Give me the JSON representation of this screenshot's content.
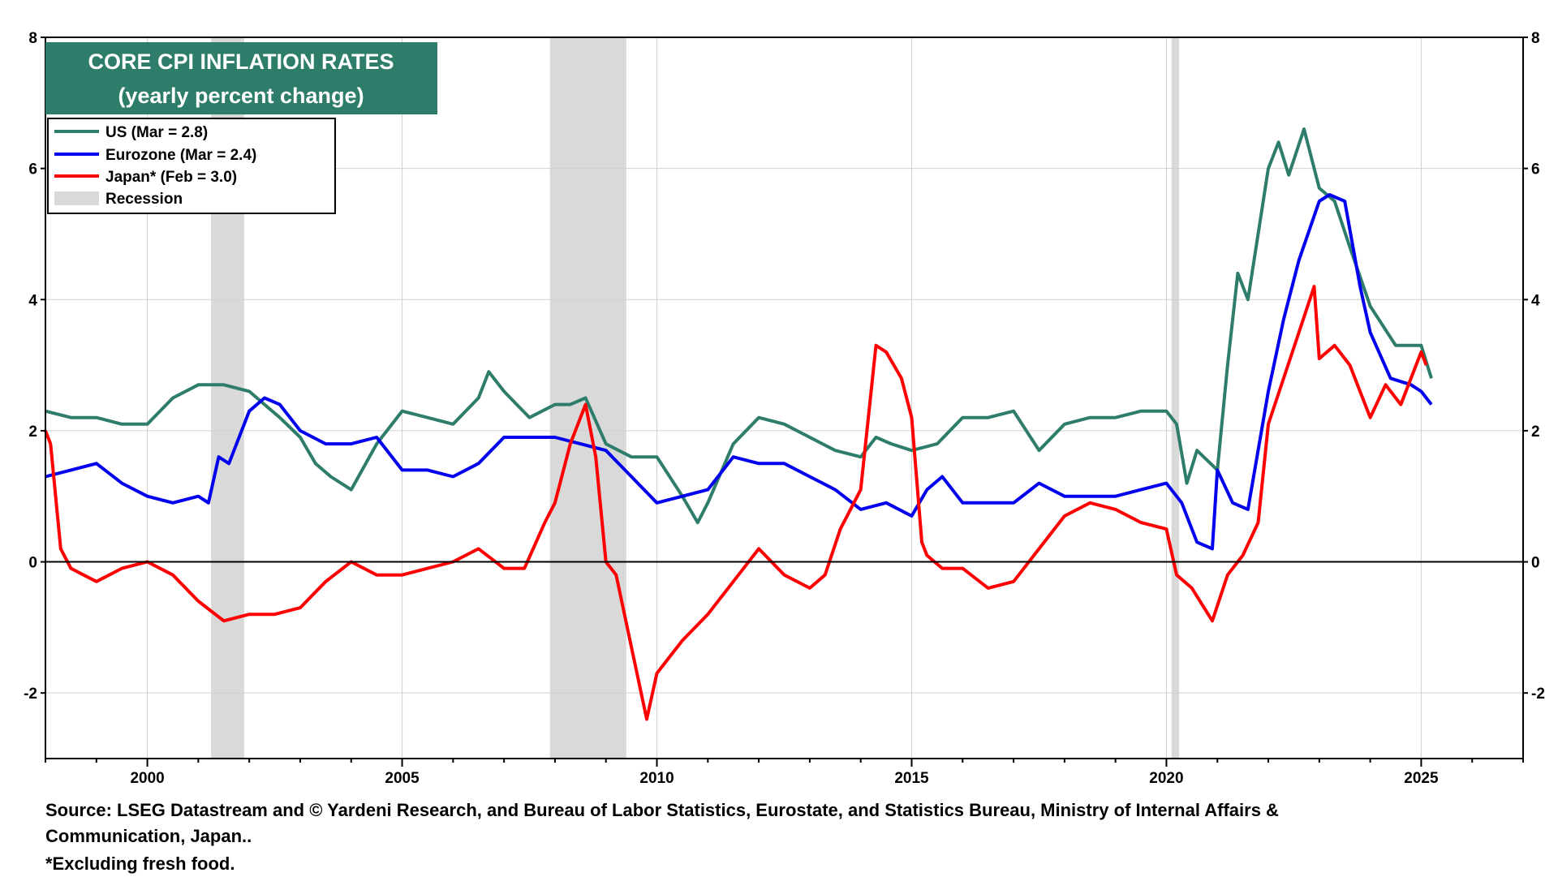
{
  "chart_data": {
    "type": "line",
    "title": "CORE CPI INFLATION RATES",
    "subtitle": "(yearly percent change)",
    "xlabel": "",
    "ylabel": "",
    "xlim": [
      1998.0,
      2027.0
    ],
    "ylim": [
      -3,
      8
    ],
    "x_ticks": [
      2000,
      2005,
      2010,
      2015,
      2020,
      2025
    ],
    "y_ticks": [
      -2,
      0,
      2,
      4,
      6,
      8
    ],
    "legend_position": "top-left",
    "recessions": [
      [
        2001.25,
        2001.9
      ],
      [
        2007.9,
        2009.4
      ],
      [
        2020.1,
        2020.25
      ]
    ],
    "series": [
      {
        "name": "US (Mar = 2.8)",
        "color": "#2e7d6b",
        "x": [
          1998.0,
          1998.5,
          1999.0,
          1999.5,
          2000.0,
          2000.5,
          2001.0,
          2001.5,
          2002.0,
          2002.3,
          2002.6,
          2003.0,
          2003.3,
          2003.6,
          2004.0,
          2004.5,
          2005.0,
          2005.5,
          2006.0,
          2006.5,
          2006.7,
          2007.0,
          2007.5,
          2008.0,
          2008.3,
          2008.6,
          2009.0,
          2009.5,
          2010.0,
          2010.5,
          2010.8,
          2011.0,
          2011.5,
          2012.0,
          2012.5,
          2013.0,
          2013.5,
          2014.0,
          2014.3,
          2014.6,
          2015.0,
          2015.5,
          2016.0,
          2016.5,
          2017.0,
          2017.5,
          2018.0,
          2018.5,
          2019.0,
          2019.5,
          2020.0,
          2020.2,
          2020.4,
          2020.6,
          2021.0,
          2021.2,
          2021.4,
          2021.6,
          2022.0,
          2022.2,
          2022.4,
          2022.7,
          2023.0,
          2023.3,
          2023.6,
          2024.0,
          2024.5,
          2025.0,
          2025.2
        ],
        "values": [
          2.3,
          2.2,
          2.2,
          2.1,
          2.1,
          2.5,
          2.7,
          2.7,
          2.6,
          2.4,
          2.2,
          1.9,
          1.5,
          1.3,
          1.1,
          1.8,
          2.3,
          2.2,
          2.1,
          2.5,
          2.9,
          2.6,
          2.2,
          2.4,
          2.4,
          2.5,
          1.8,
          1.6,
          1.6,
          1.0,
          0.6,
          0.9,
          1.8,
          2.2,
          2.1,
          1.9,
          1.7,
          1.6,
          1.9,
          1.8,
          1.7,
          1.8,
          2.2,
          2.2,
          2.3,
          1.7,
          2.1,
          2.2,
          2.2,
          2.3,
          2.3,
          2.1,
          1.2,
          1.7,
          1.4,
          3.0,
          4.4,
          4.0,
          6.0,
          6.4,
          5.9,
          6.6,
          5.7,
          5.5,
          4.8,
          3.9,
          3.3,
          3.3,
          2.8
        ]
      },
      {
        "name": "Eurozone (Mar = 2.4)",
        "color": "#0000ee",
        "x": [
          1998.0,
          1998.5,
          1999.0,
          1999.5,
          2000.0,
          2000.5,
          2001.0,
          2001.2,
          2001.4,
          2001.6,
          2002.0,
          2002.3,
          2002.6,
          2003.0,
          2003.5,
          2004.0,
          2004.5,
          2005.0,
          2005.5,
          2006.0,
          2006.5,
          2007.0,
          2007.5,
          2008.0,
          2008.5,
          2009.0,
          2009.5,
          2010.0,
          2010.5,
          2011.0,
          2011.5,
          2012.0,
          2012.5,
          2013.0,
          2013.5,
          2014.0,
          2014.5,
          2015.0,
          2015.3,
          2015.6,
          2016.0,
          2016.5,
          2017.0,
          2017.5,
          2018.0,
          2018.5,
          2019.0,
          2019.5,
          2020.0,
          2020.3,
          2020.6,
          2020.9,
          2021.0,
          2021.3,
          2021.6,
          2022.0,
          2022.3,
          2022.6,
          2023.0,
          2023.2,
          2023.5,
          2023.8,
          2024.0,
          2024.4,
          2024.8,
          2025.0,
          2025.2
        ],
        "values": [
          1.3,
          1.4,
          1.5,
          1.2,
          1.0,
          0.9,
          1.0,
          0.9,
          1.6,
          1.5,
          2.3,
          2.5,
          2.4,
          2.0,
          1.8,
          1.8,
          1.9,
          1.4,
          1.4,
          1.3,
          1.5,
          1.9,
          1.9,
          1.9,
          1.8,
          1.7,
          1.3,
          0.9,
          1.0,
          1.1,
          1.6,
          1.5,
          1.5,
          1.3,
          1.1,
          0.8,
          0.9,
          0.7,
          1.1,
          1.3,
          0.9,
          0.9,
          0.9,
          1.2,
          1.0,
          1.0,
          1.0,
          1.1,
          1.2,
          0.9,
          0.3,
          0.2,
          1.4,
          0.9,
          0.8,
          2.6,
          3.7,
          4.6,
          5.5,
          5.6,
          5.5,
          4.2,
          3.5,
          2.8,
          2.7,
          2.6,
          2.4
        ]
      },
      {
        "name": "Japan* (Feb = 3.0)",
        "color": "#ff0000",
        "x": [
          1998.0,
          1998.1,
          1998.3,
          1998.5,
          1999.0,
          1999.5,
          2000.0,
          2000.5,
          2001.0,
          2001.5,
          2002.0,
          2002.5,
          2003.0,
          2003.5,
          2004.0,
          2004.5,
          2005.0,
          2005.5,
          2006.0,
          2006.5,
          2007.0,
          2007.4,
          2007.8,
          2008.0,
          2008.3,
          2008.6,
          2008.8,
          2009.0,
          2009.2,
          2009.5,
          2009.8,
          2010.0,
          2010.5,
          2011.0,
          2011.5,
          2012.0,
          2012.5,
          2013.0,
          2013.3,
          2013.6,
          2014.0,
          2014.3,
          2014.5,
          2014.8,
          2015.0,
          2015.2,
          2015.3,
          2015.6,
          2016.0,
          2016.5,
          2017.0,
          2017.5,
          2018.0,
          2018.5,
          2019.0,
          2019.5,
          2020.0,
          2020.2,
          2020.5,
          2020.9,
          2021.2,
          2021.5,
          2021.8,
          2022.0,
          2022.3,
          2022.6,
          2022.9,
          2023.0,
          2023.3,
          2023.6,
          2024.0,
          2024.3,
          2024.6,
          2025.0,
          2025.1
        ],
        "values": [
          2.0,
          1.8,
          0.2,
          -0.1,
          -0.3,
          -0.1,
          0.0,
          -0.2,
          -0.6,
          -0.9,
          -0.8,
          -0.8,
          -0.7,
          -0.3,
          0.0,
          -0.2,
          -0.2,
          -0.1,
          0.0,
          0.2,
          -0.1,
          -0.1,
          0.6,
          0.9,
          1.8,
          2.4,
          1.6,
          0.0,
          -0.2,
          -1.3,
          -2.4,
          -1.7,
          -1.2,
          -0.8,
          -0.3,
          0.2,
          -0.2,
          -0.4,
          -0.2,
          0.5,
          1.1,
          3.3,
          3.2,
          2.8,
          2.2,
          0.3,
          0.1,
          -0.1,
          -0.1,
          -0.4,
          -0.3,
          0.2,
          0.7,
          0.9,
          0.8,
          0.6,
          0.5,
          -0.2,
          -0.4,
          -0.9,
          -0.2,
          0.1,
          0.6,
          2.1,
          2.8,
          3.5,
          4.2,
          3.1,
          3.3,
          3.0,
          2.2,
          2.7,
          2.4,
          3.2,
          3.0
        ]
      }
    ],
    "legend": [
      "US (Mar = 2.8)",
      "Eurozone (Mar = 2.4)",
      "Japan* (Feb = 3.0)",
      "Recession"
    ],
    "recession_color": "#d9d9d9"
  },
  "source_lines": [
    "Source: LSEG Datastream and © Yardeni Research, and Bureau of Labor Statistics, Eurostate, and Statistics Bureau, Ministry of Internal Affairs &",
    "Communication, Japan..",
    "*Excluding fresh food."
  ],
  "colors": {
    "title_bg": "#2e7d6b",
    "title_text": "#ffffff"
  }
}
